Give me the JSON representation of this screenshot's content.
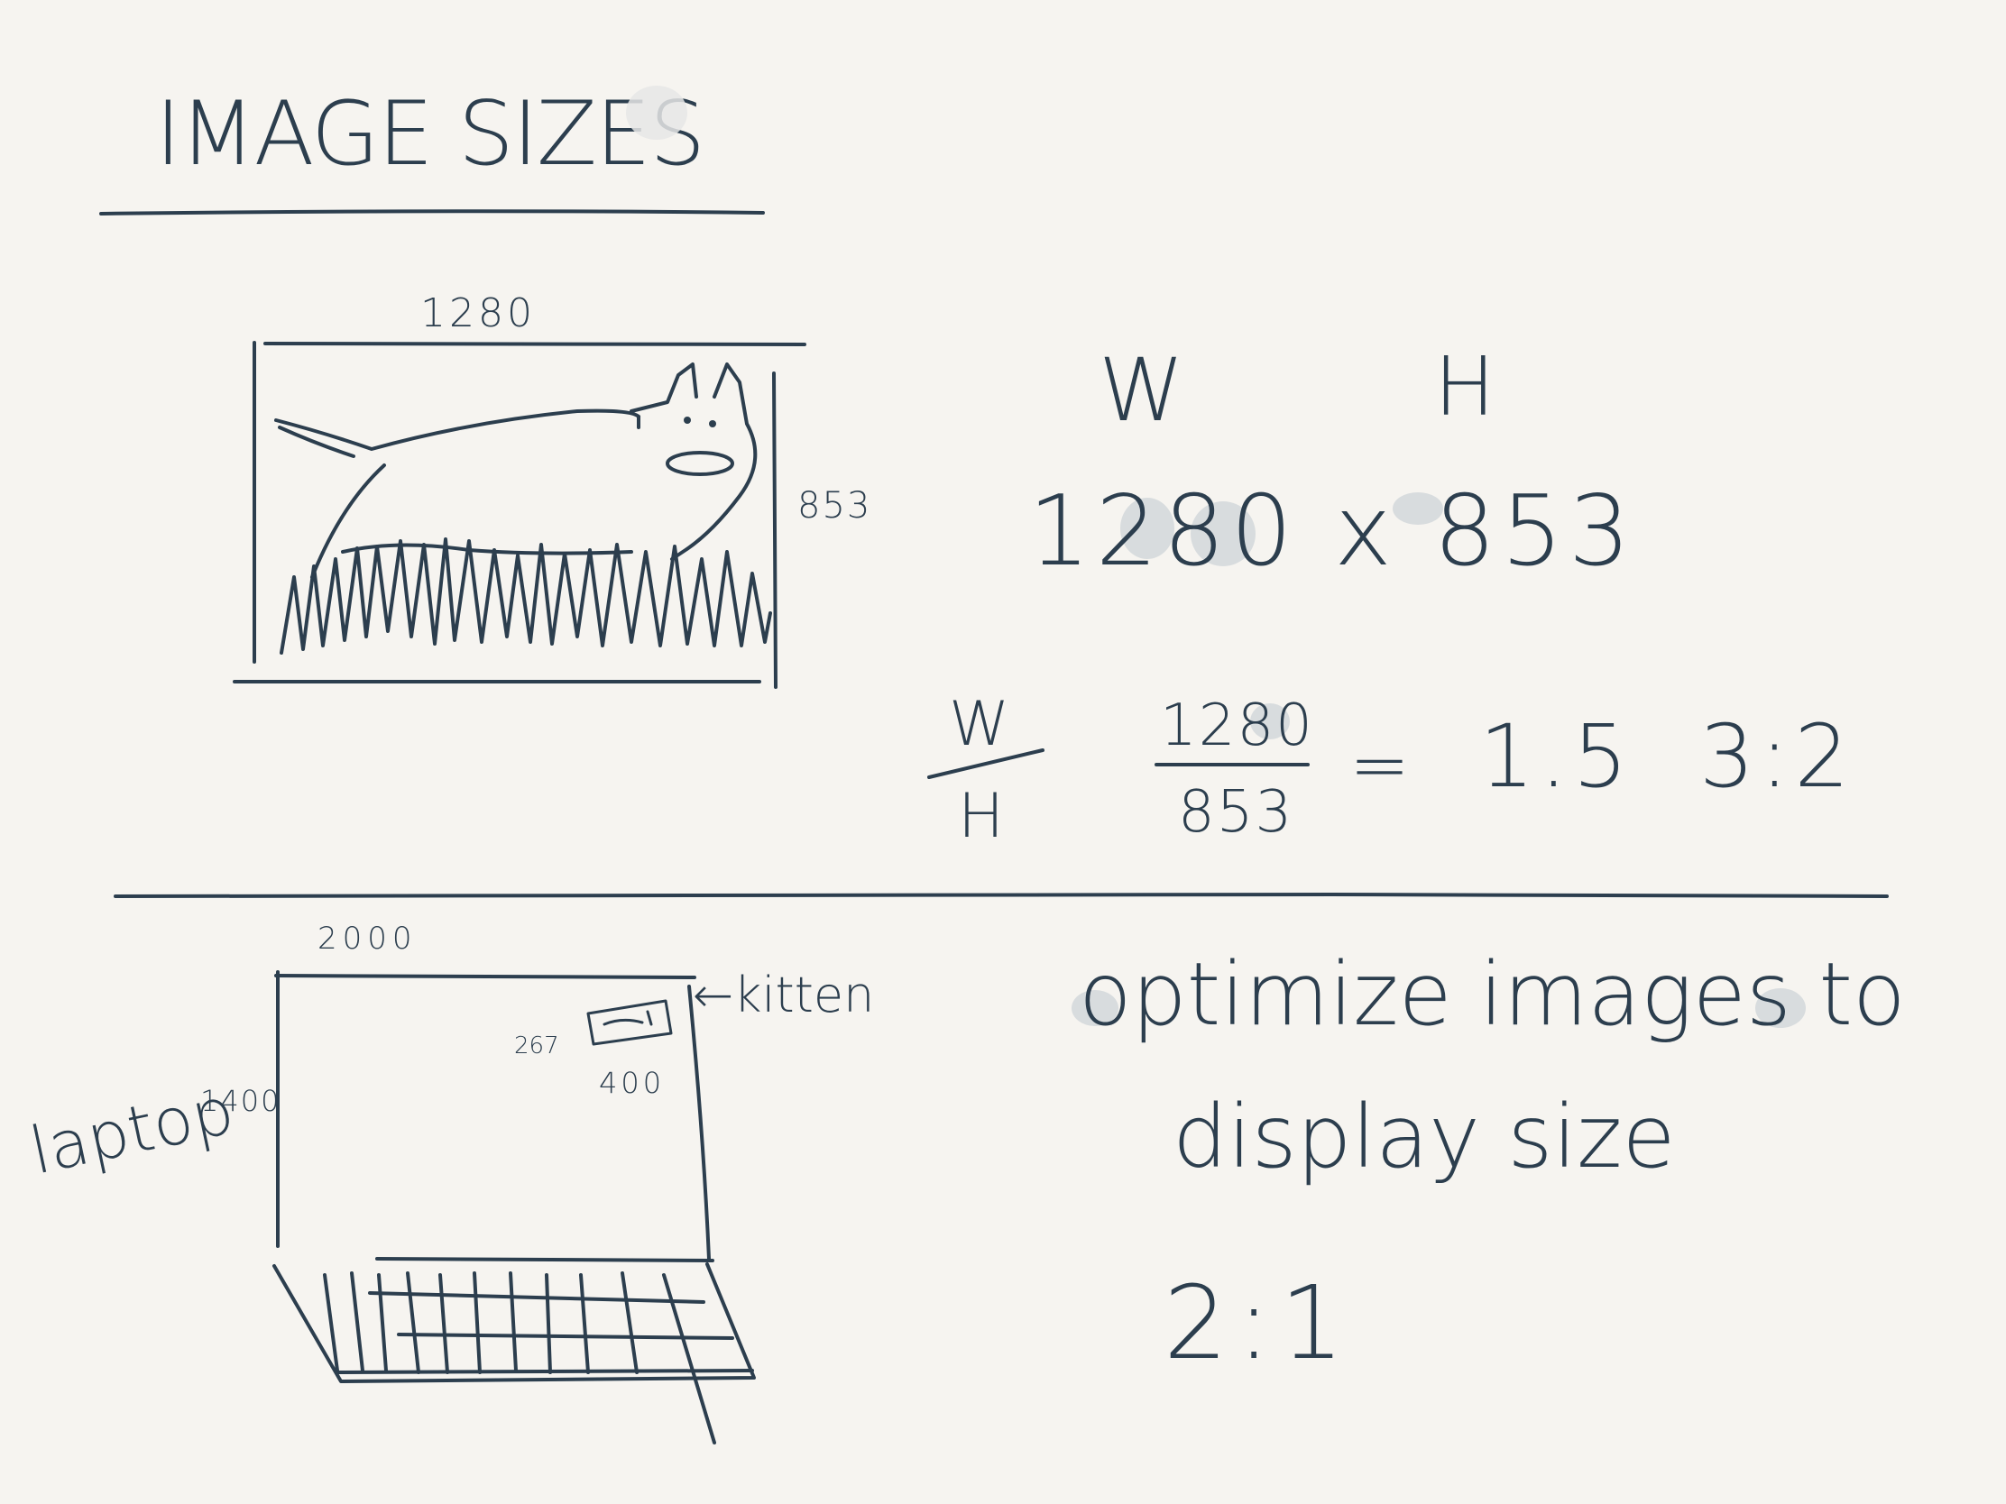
{
  "title": "IMAGE SIZES",
  "top_section": {
    "width_label": "1280",
    "height_label": "853",
    "w_header": "W",
    "h_header": "H",
    "dimension_expression": "1280 x 853",
    "fraction_w": "W",
    "fraction_h": "H",
    "numerator": "1280",
    "denominator": "853",
    "equals": "=",
    "ratio_value": "1.5",
    "ratio_label": "3:2"
  },
  "bottom_section": {
    "screen_width_label": "2000",
    "screen_height_label": "1400",
    "device_label": "laptop",
    "kitten_height_label": "267",
    "kitten_width_label": "400",
    "kitten_arrow_label": "←kitten",
    "note_line_1": "optimize images to",
    "note_line_2": "display size",
    "ratio_label": "2:1"
  },
  "colors": {
    "ink": "#2c3e4e",
    "paper": "#f6f4f0",
    "highlight": "#d8dcde"
  }
}
